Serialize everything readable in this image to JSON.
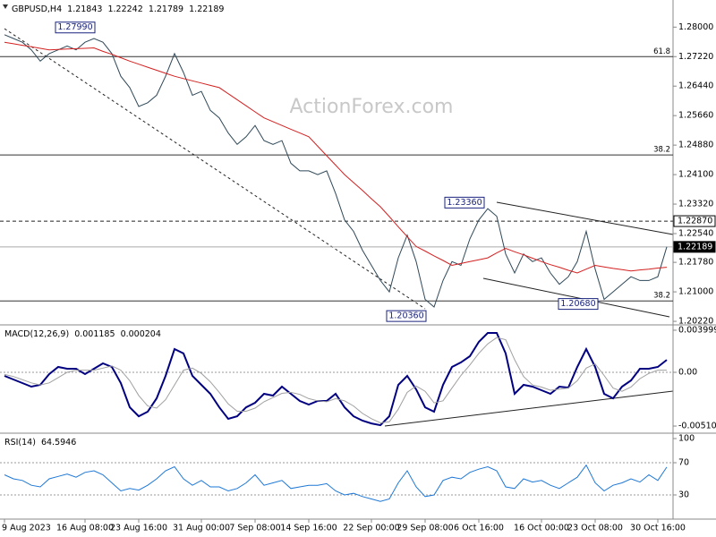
{
  "chart_data": [
    {
      "type": "line",
      "symbol": "GBPUSD,H4",
      "ohlc": [
        1.21843,
        1.22242,
        1.21789,
        1.22189
      ],
      "watermark": "ActionForex.com",
      "ylim": [
        1.2015,
        1.2867
      ],
      "yticks": [
        {
          "value": 1.28,
          "label": "1.28000"
        },
        {
          "value": 1.2722,
          "label": "1.27220"
        },
        {
          "value": 1.2644,
          "label": "1.26440"
        },
        {
          "value": 1.2566,
          "label": "1.25660"
        },
        {
          "value": 1.2488,
          "label": "1.24880"
        },
        {
          "value": 1.241,
          "label": "1.24100"
        },
        {
          "value": 1.2332,
          "label": "1.23320"
        },
        {
          "value": 1.2254,
          "label": "1.22540"
        },
        {
          "value": 1.2178,
          "label": "1.21780"
        },
        {
          "value": 1.21,
          "label": "1.21000"
        },
        {
          "value": 1.2022,
          "label": "1.20220"
        }
      ],
      "series": [
        {
          "color": "#2f4858",
          "values": [
            1.278,
            1.277,
            1.276,
            1.274,
            1.271,
            1.273,
            1.274,
            1.275,
            1.274,
            1.276,
            1.277,
            1.276,
            1.273,
            1.267,
            1.264,
            1.259,
            1.26,
            1.262,
            1.267,
            1.273,
            1.268,
            1.262,
            1.263,
            1.258,
            1.256,
            1.252,
            1.249,
            1.251,
            1.254,
            1.25,
            1.249,
            1.25,
            1.244,
            1.242,
            1.242,
            1.241,
            1.242,
            1.236,
            1.229,
            1.226,
            1.221,
            1.217,
            1.213,
            1.21,
            1.219,
            1.225,
            1.218,
            1.208,
            1.206,
            1.213,
            1.218,
            1.217,
            1.224,
            1.229,
            1.232,
            1.23,
            1.22,
            1.215,
            1.22,
            1.218,
            1.219,
            1.215,
            1.212,
            1.214,
            1.218,
            1.226,
            1.216,
            1.208,
            1.21,
            1.212,
            1.214,
            1.213,
            1.213,
            1.214,
            1.22189
          ]
        },
        {
          "color": "#d42020",
          "values": [
            1.276,
            1.2756,
            1.2752,
            1.2748,
            1.2744,
            1.274,
            1.2741,
            1.2742,
            1.2743,
            1.2744,
            1.2745,
            1.2736,
            1.2728,
            1.2719,
            1.271,
            1.2702,
            1.2694,
            1.2686,
            1.2678,
            1.267,
            1.2664,
            1.2658,
            1.2652,
            1.2646,
            1.264,
            1.2624,
            1.2608,
            1.2592,
            1.2576,
            1.256,
            1.255,
            1.254,
            1.253,
            1.252,
            1.251,
            1.2485,
            1.246,
            1.2435,
            1.241,
            1.2389,
            1.2368,
            1.2346,
            1.2325,
            1.2299,
            1.2272,
            1.2246,
            1.222,
            1.2208,
            1.2195,
            1.2183,
            1.217,
            1.2175,
            1.218,
            1.2185,
            1.219,
            1.2203,
            1.2215,
            1.2206,
            1.2198,
            1.2189,
            1.218,
            1.2172,
            1.2165,
            1.2157,
            1.215,
            1.216,
            1.217,
            1.2166,
            1.2162,
            1.2159,
            1.2155,
            1.2158,
            1.216,
            1.2163,
            1.2165
          ]
        }
      ],
      "levels": [
        {
          "label": "61.8",
          "value": 1.2722
        },
        {
          "label": "38.2",
          "value": 1.2462
        },
        {
          "label": "38.2",
          "value": 1.2076
        }
      ],
      "price_marks": [
        {
          "value": 1.2287,
          "label": "1.22870",
          "line": "dashed"
        },
        {
          "value": 1.22189,
          "label": "1.22189",
          "line": "solid"
        }
      ],
      "annotations": [
        {
          "value": 1.2799,
          "label": "1.27990"
        },
        {
          "value": 1.2336,
          "label": "1.23360"
        },
        {
          "value": 1.2036,
          "label": "1.20360"
        },
        {
          "value": 1.2068,
          "label": "1.20680"
        }
      ]
    },
    {
      "type": "line",
      "title": "MACD(12,26,9)",
      "title_values": [
        0.001185,
        0.000204
      ],
      "ylim": [
        -0.00561,
        0.00442
      ],
      "yticks": [
        0.003999,
        {
          "value": 0,
          "label": "0.00"
        },
        -0.005103
      ],
      "guides": [
        0
      ],
      "series": [
        {
          "color": "#000080",
          "values": [
            -0.00034,
            -0.00068,
            -0.00102,
            -0.00136,
            -0.00119,
            -0.00017,
            0.00051,
            0.00034,
            0.00034,
            -0.00017,
            0.00034,
            0.00085,
            0.00051,
            -0.00102,
            -0.00332,
            -0.00417,
            -0.00374,
            -0.00247,
            -0.00034,
            0.00221,
            0.00179,
            -0.00034,
            -0.00119,
            -0.00204,
            -0.00332,
            -0.00442,
            -0.00417,
            -0.00332,
            -0.00289,
            -0.00204,
            -0.00221,
            -0.00136,
            -0.00204,
            -0.00272,
            -0.00306,
            -0.00272,
            -0.00272,
            -0.00204,
            -0.00332,
            -0.00417,
            -0.00459,
            -0.00485,
            -0.00502,
            -0.00417,
            -0.00119,
            -0.00034,
            -0.00162,
            -0.00332,
            -0.00374,
            -0.00119,
            0.00051,
            0.00094,
            0.00153,
            0.00289,
            0.00374,
            0.00374,
            0.00179,
            -0.00204,
            -0.00119,
            -0.00136,
            -0.0017,
            -0.00204,
            -0.00136,
            -0.00145,
            0.00051,
            0.00221,
            0.00051,
            -0.00204,
            -0.00247,
            -0.00136,
            -0.00077,
            0.00034,
            0.00034,
            0.00051,
            0.001185
          ]
        },
        {
          "color": "#a0a0a0",
          "values": [
            -0.0002,
            -0.0004,
            -0.0007,
            -0.001,
            -0.0012,
            -0.001,
            -0.0005,
            0,
            0.0002,
            0.0002,
            0.0002,
            0.0004,
            0.0006,
            0.0002,
            -0.0008,
            -0.0022,
            -0.0032,
            -0.0034,
            -0.0026,
            -0.0012,
            0.0002,
            0.0004,
            -0.0001,
            -0.0009,
            -0.0019,
            -0.003,
            -0.0037,
            -0.0037,
            -0.0034,
            -0.0028,
            -0.0024,
            -0.002,
            -0.0019,
            -0.0021,
            -0.0025,
            -0.0027,
            -0.0028,
            -0.0025,
            -0.0027,
            -0.0032,
            -0.0039,
            -0.0044,
            -0.0048,
            -0.0047,
            -0.0035,
            -0.0019,
            -0.0013,
            -0.0018,
            -0.0029,
            -0.0027,
            -0.0015,
            -0.0003,
            0.0007,
            0.0018,
            0.0027,
            0.0033,
            0.0031,
            0.0012,
            -0.0004,
            -0.0012,
            -0.0014,
            -0.0017,
            -0.0016,
            -0.0015,
            -0.0008,
            0.0004,
            0.0008,
            -0.0003,
            -0.0015,
            -0.0018,
            -0.0014,
            -0.0006,
            -0.0001,
            0.0002,
            0.000204
          ]
        }
      ]
    },
    {
      "type": "line",
      "title": "RSI(14)",
      "title_values": [
        64.5946
      ],
      "ylim": [
        0,
        100
      ],
      "yticks": [
        100,
        70,
        30
      ],
      "guides": [
        70,
        30
      ],
      "categories": [
        "9 Aug 2023",
        null,
        null,
        null,
        null,
        null,
        null,
        null,
        null,
        "16 Aug 08:00",
        null,
        null,
        null,
        null,
        null,
        "23 Aug 16:00",
        null,
        null,
        null,
        null,
        null,
        null,
        "31 Aug 00:00",
        null,
        null,
        null,
        null,
        null,
        "7 Sep 08:00",
        null,
        null,
        null,
        null,
        null,
        "14 Sep 16:00",
        null,
        null,
        null,
        null,
        null,
        null,
        "22 Sep 00:00",
        null,
        null,
        null,
        null,
        null,
        "29 Sep 08:00",
        null,
        null,
        null,
        null,
        null,
        "6 Oct 16:00",
        null,
        null,
        null,
        null,
        null,
        null,
        "16 Oct 00:00",
        null,
        null,
        null,
        null,
        null,
        "23 Oct 08:00",
        null,
        null,
        null,
        null,
        null,
        null,
        "30 Oct 16:00",
        null
      ],
      "series": [
        {
          "color": "#1e78d6",
          "values": [
            55,
            50,
            48,
            42,
            40,
            50,
            53,
            56,
            52,
            58,
            60,
            55,
            45,
            35,
            38,
            36,
            42,
            50,
            60,
            65,
            50,
            42,
            48,
            40,
            40,
            35,
            38,
            45,
            55,
            42,
            45,
            48,
            38,
            40,
            42,
            42,
            44,
            35,
            30,
            32,
            28,
            25,
            22,
            25,
            45,
            60,
            40,
            28,
            30,
            48,
            52,
            50,
            58,
            62,
            65,
            60,
            40,
            38,
            50,
            46,
            48,
            42,
            38,
            45,
            52,
            67,
            45,
            35,
            42,
            45,
            50,
            46,
            55,
            48,
            64.5946
          ]
        }
      ]
    }
  ]
}
